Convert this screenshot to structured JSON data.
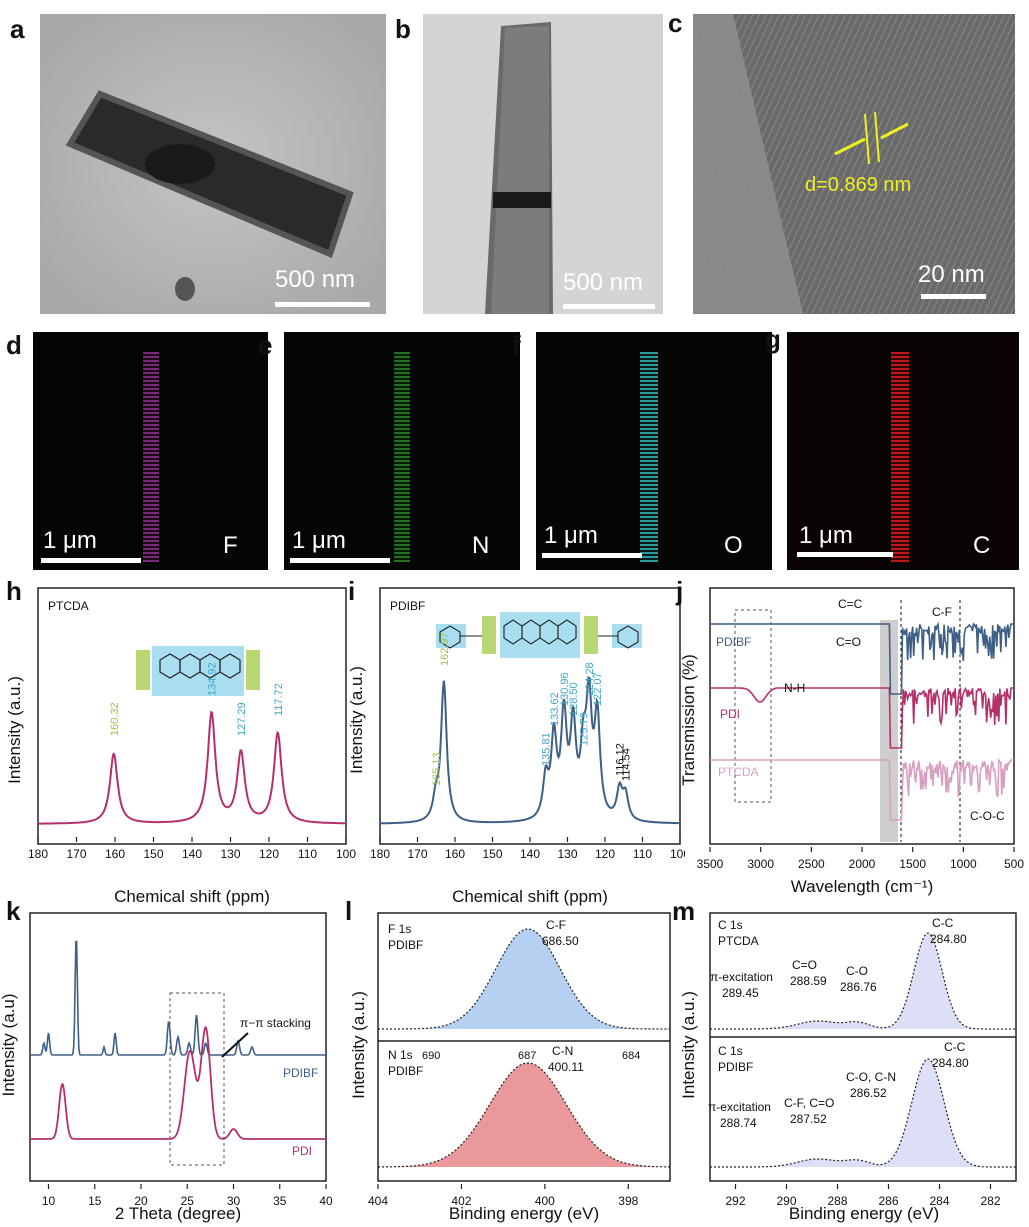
{
  "panels": {
    "a": {
      "label": "a",
      "scale": "500 nm"
    },
    "b": {
      "label": "b",
      "scale": "500 nm"
    },
    "c": {
      "label": "c",
      "scale": "20 nm",
      "annotation": "d=0.869 nm"
    },
    "d": {
      "label": "d",
      "scale": "1 μm",
      "element": "F",
      "color": "#b040b0"
    },
    "e": {
      "label": "e",
      "scale": "1 μm",
      "element": "N",
      "color": "#30b030"
    },
    "f": {
      "label": "f",
      "scale": "1 μm",
      "element": "O",
      "color": "#30c0c0"
    },
    "g": {
      "label": "g",
      "scale": "1 μm",
      "element": "C",
      "color": "#d02020"
    }
  },
  "colors": {
    "pink": "#b5306b",
    "blue": "#3e5f86",
    "lightpink": "#d8a0c0",
    "green": "#9fc34a",
    "cyan": "#3fa7c9",
    "lightblue": "#a9c8ee",
    "red": "#e8868a"
  },
  "chart_data": [
    {
      "id": "h",
      "label": "h",
      "type": "line",
      "series_label": "PTCDA",
      "xlabel": "Chemical shift (ppm)",
      "ylabel": "Intensity (a.u.)",
      "xlim": [
        180,
        100
      ],
      "xticks": [
        180,
        170,
        160,
        150,
        140,
        130,
        120,
        110,
        100
      ],
      "peaks": [
        {
          "x": 160.32,
          "label": "160.32",
          "color": "green"
        },
        {
          "x": 134.92,
          "label": "134.92",
          "color": "cyan"
        },
        {
          "x": 127.29,
          "label": "127.29",
          "color": "cyan"
        },
        {
          "x": 117.72,
          "label": "117.72",
          "color": "cyan"
        }
      ]
    },
    {
      "id": "i",
      "label": "i",
      "type": "line",
      "series_label": "PDIBF",
      "xlabel": "Chemical shift (ppm)",
      "ylabel": "Intensity (a.u.)",
      "xlim": [
        180,
        100
      ],
      "xticks": [
        180,
        170,
        160,
        150,
        140,
        130,
        120,
        110,
        100
      ],
      "peaks": [
        {
          "x": 165.13,
          "label": "165.13",
          "color": "green"
        },
        {
          "x": 162.97,
          "label": "162.97",
          "color": "green"
        },
        {
          "x": 135.81,
          "label": "135.81",
          "color": "cyan"
        },
        {
          "x": 133.62,
          "label": "133.62",
          "color": "cyan"
        },
        {
          "x": 130.96,
          "label": "130.96",
          "color": "cyan"
        },
        {
          "x": 128.5,
          "label": "128.50",
          "color": "cyan"
        },
        {
          "x": 125.79,
          "label": "125.79",
          "color": "cyan"
        },
        {
          "x": 124.28,
          "label": "124.28",
          "color": "cyan"
        },
        {
          "x": 122.07,
          "label": "122.07",
          "color": "cyan"
        },
        {
          "x": 116.12,
          "label": "116.12",
          "color": "black"
        },
        {
          "x": 114.54,
          "label": "114.54",
          "color": "black"
        }
      ]
    },
    {
      "id": "j",
      "label": "j",
      "type": "line",
      "xlabel": "Wavelength (cm⁻¹)",
      "ylabel": "Transmission (%)",
      "xlim": [
        3500,
        500
      ],
      "xticks": [
        3500,
        3000,
        2500,
        2000,
        1500,
        1000,
        500
      ],
      "series": [
        {
          "name": "PDIBF"
        },
        {
          "name": "PDI"
        },
        {
          "name": "PTCDA"
        }
      ],
      "annotations": [
        "C=C",
        "C-F",
        "C=O",
        "N-H",
        "C-O-C"
      ]
    },
    {
      "id": "k",
      "label": "k",
      "type": "line",
      "xlabel": "2 Theta (degree)",
      "ylabel": "Intensity (a.u)",
      "xlim": [
        8,
        40
      ],
      "xticks": [
        10,
        15,
        20,
        25,
        30,
        35,
        40
      ],
      "series": [
        {
          "name": "PDIBF"
        },
        {
          "name": "PDI"
        }
      ],
      "annotations": [
        "π−π stacking"
      ]
    },
    {
      "id": "l",
      "label": "l",
      "type": "line",
      "xlabel": "Binding energy (eV)",
      "ylabel": "Intensity (a.u.)",
      "xticks": [
        404,
        402,
        400,
        398
      ],
      "top": {
        "title1": "F 1s",
        "title2": "PDIBF",
        "bond": "C-F",
        "energy": "686.50"
      },
      "bottom": {
        "title1": "N 1s",
        "title2": "PDIBF",
        "bond": "C-N",
        "energy": "400.11",
        "ticks_top": [
          "690",
          "687",
          "684"
        ]
      }
    },
    {
      "id": "m",
      "label": "m",
      "type": "line",
      "xlabel": "Binding energy (eV)",
      "ylabel": "Intensity (a.u.)",
      "xticks": [
        292,
        290,
        288,
        286,
        284,
        282
      ],
      "top": {
        "title1": "C 1s",
        "title2": "PTCDA",
        "peaks": [
          {
            "name": "C-C",
            "energy": "284.80"
          },
          {
            "name": "π-excitation",
            "energy": "289.45"
          },
          {
            "name": "C=O",
            "energy": "288.59"
          },
          {
            "name": "C-O",
            "energy": "286.76"
          }
        ]
      },
      "bottom": {
        "title1": "C 1s",
        "title2": "PDIBF",
        "peaks": [
          {
            "name": "C-C",
            "energy": "284.80"
          },
          {
            "name": "π-excitation",
            "energy": "288.74"
          },
          {
            "name": "C-F, C=O",
            "energy": "287.52"
          },
          {
            "name": "C-O, C-N",
            "energy": "286.52"
          }
        ]
      }
    }
  ]
}
